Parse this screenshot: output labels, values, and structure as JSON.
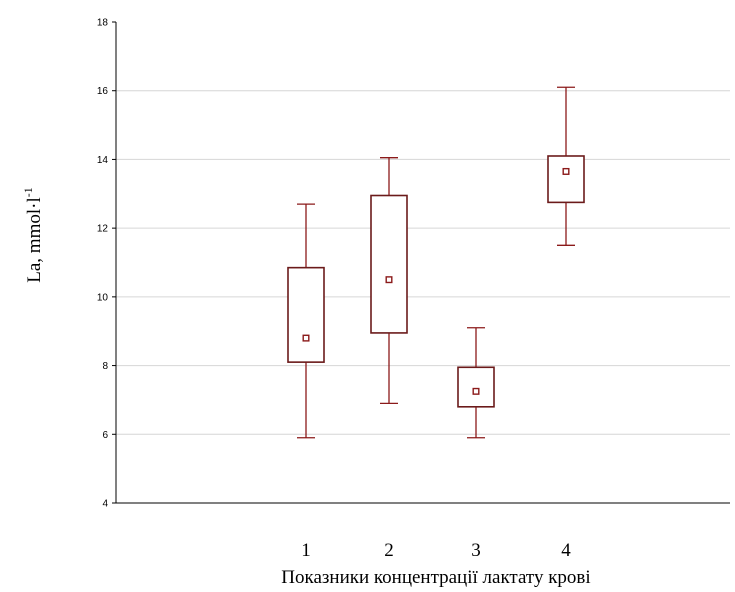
{
  "chart_data": {
    "type": "boxplot",
    "title": "",
    "xlabel": "Показники концентрації лактату крові",
    "ylabel": "La, mmol·l",
    "ylabel_superscript": "-1",
    "ylim": [
      4,
      18
    ],
    "yticks": [
      "4",
      "6",
      "8",
      "10",
      "12",
      "14",
      "16",
      "18"
    ],
    "grid": true,
    "colors": {
      "box": "#6b1a1a",
      "whisker": "#8b1a1a",
      "mean": "#8b1a1a",
      "grid": "#d6d6d6",
      "axis": "#000000"
    },
    "categories": [
      "1",
      "2",
      "3",
      "4"
    ],
    "series": [
      {
        "category": "1",
        "min": 5.9,
        "q1": 8.1,
        "mean": 8.8,
        "q3": 10.85,
        "max": 12.7
      },
      {
        "category": "2",
        "min": 6.9,
        "q1": 8.95,
        "mean": 10.5,
        "q3": 12.95,
        "max": 14.05
      },
      {
        "category": "3",
        "min": 5.9,
        "q1": 6.8,
        "mean": 7.25,
        "q3": 7.95,
        "max": 9.1
      },
      {
        "category": "4",
        "min": 11.5,
        "q1": 12.75,
        "mean": 13.65,
        "q3": 14.1,
        "max": 16.1
      }
    ]
  }
}
